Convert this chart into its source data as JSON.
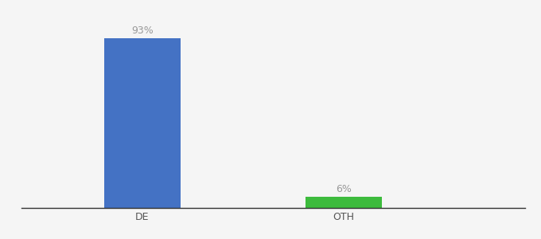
{
  "categories": [
    "DE",
    "OTH"
  ],
  "values": [
    93,
    6
  ],
  "bar_colors": [
    "#4472c4",
    "#3dbb3d"
  ],
  "labels": [
    "93%",
    "6%"
  ],
  "ylim": [
    0,
    105
  ],
  "background_color": "#f5f5f5",
  "label_fontsize": 9,
  "tick_fontsize": 9,
  "bar_width": 0.38,
  "x_positions": [
    1,
    2
  ],
  "xlim": [
    0.4,
    2.9
  ],
  "label_color": "#999999",
  "tick_color": "#555555"
}
